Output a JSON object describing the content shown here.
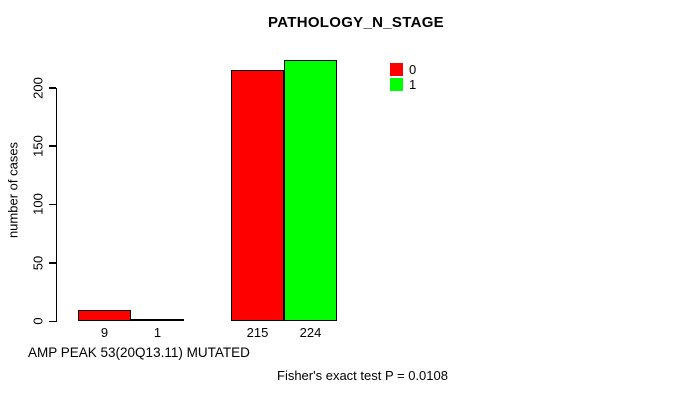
{
  "chart_data": {
    "type": "bar",
    "title": "PATHOLOGY_N_STAGE",
    "ylabel": "number of cases",
    "xlabel": "AMP PEAK 53(20Q13.11) MUTATED",
    "annotation": "Fisher's exact test P = 0.0108",
    "series": [
      {
        "name": "0",
        "color": "#FF0000",
        "values": [
          9,
          215
        ]
      },
      {
        "name": "1",
        "color": "#00FF00",
        "values": [
          1,
          224
        ]
      }
    ],
    "bar_value_labels": [
      [
        "9",
        "215"
      ],
      [
        "1",
        "224"
      ]
    ],
    "yticks": [
      0,
      50,
      100,
      150,
      200
    ],
    "ylim": [
      0,
      232
    ],
    "grid": false,
    "legend_position": "top-right",
    "legend_entries": [
      {
        "label": "0",
        "color": "#FF0000"
      },
      {
        "label": "1",
        "color": "#00FF00"
      }
    ]
  },
  "colors": {
    "bar_red": "#FF0000",
    "bar_green": "#00FF00",
    "axis": "#000000",
    "background": "#FFFFFF"
  }
}
